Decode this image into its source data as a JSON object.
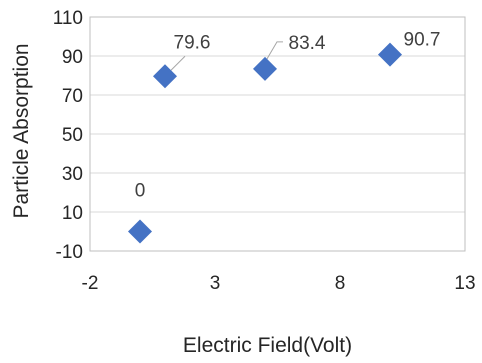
{
  "chart_data": {
    "type": "scatter",
    "xlabel": "Electric Field(Volt)",
    "ylabel": "Particle Absorption",
    "xlim": [
      -2,
      13
    ],
    "ylim": [
      -10,
      110
    ],
    "xticks": [
      -2,
      3,
      8,
      13
    ],
    "yticks": [
      -10,
      10,
      30,
      50,
      70,
      90,
      110
    ],
    "grid": "horizontal",
    "legend": "none",
    "series": [
      {
        "marker": "diamond",
        "color": "#4472C4",
        "points": [
          {
            "x": 0,
            "y": 0,
            "label": "0"
          },
          {
            "x": 1,
            "y": 79.6,
            "label": "79.6"
          },
          {
            "x": 5,
            "y": 83.4,
            "label": "83.4"
          },
          {
            "x": 10,
            "y": 90.7,
            "label": "90.7"
          }
        ]
      }
    ]
  }
}
